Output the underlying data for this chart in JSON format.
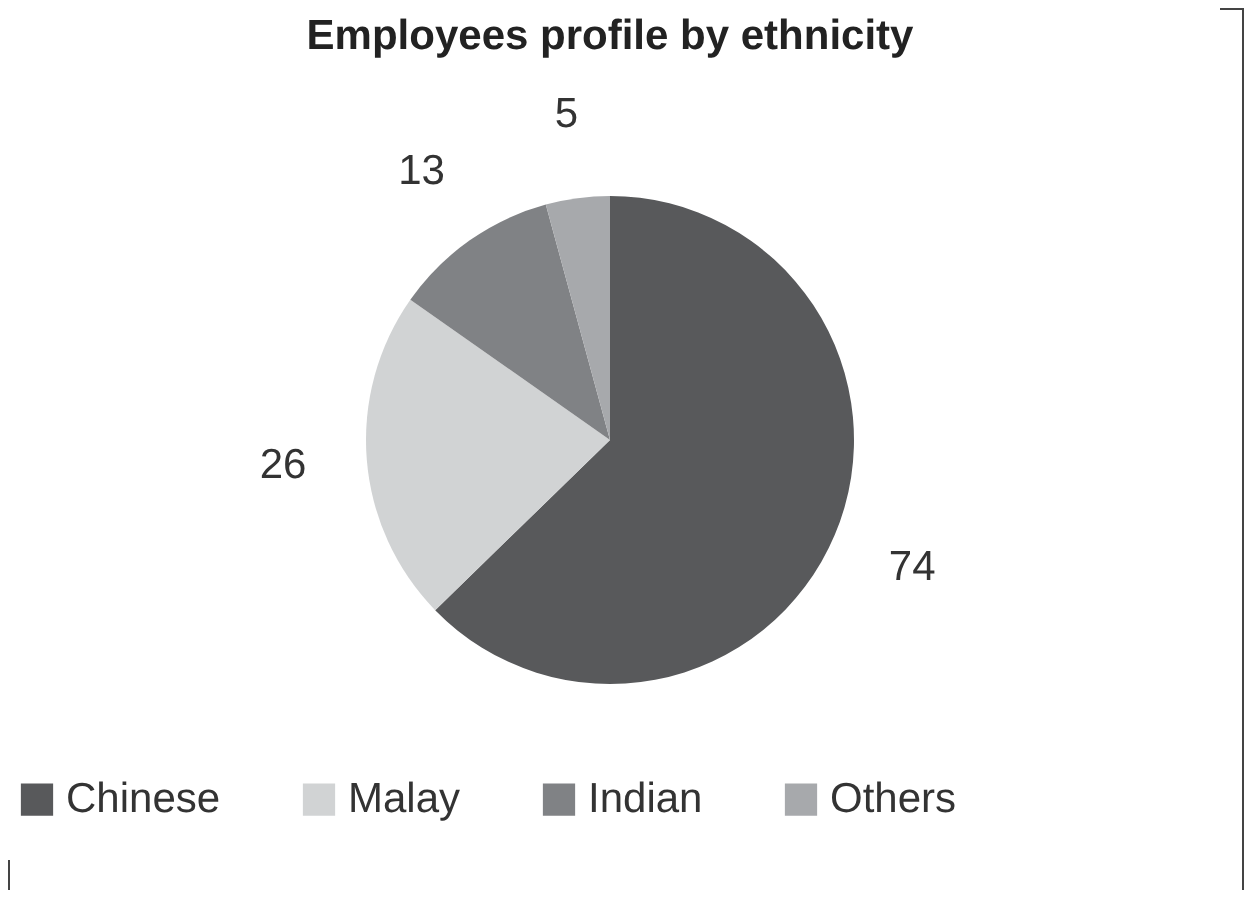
{
  "chart_data": {
    "type": "pie",
    "title": "Employees profile by ethnicity",
    "categories": [
      "Chinese",
      "Malay",
      "Indian",
      "Others"
    ],
    "values": [
      74,
      26,
      13,
      5
    ],
    "colors": [
      "#58595b",
      "#d1d3d4",
      "#808285",
      "#a7a9ac"
    ],
    "data_labels": true,
    "legend": "bottom"
  }
}
